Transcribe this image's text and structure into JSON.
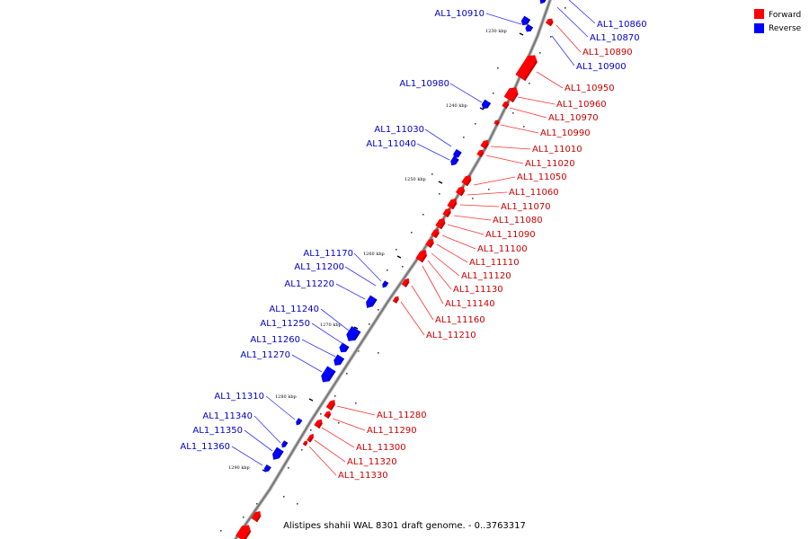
{
  "legend": {
    "items": [
      {
        "label": "Forward",
        "color": "#ff0000"
      },
      {
        "label": "Reverse",
        "color": "#0000ff"
      }
    ]
  },
  "caption": "Alistipes shahii WAL 8301 draft genome. - 0..3763317",
  "colors": {
    "forward": "#ff0000",
    "reverse": "#0000ff",
    "forward_label": "#cc0000",
    "reverse_label": "#0000cc",
    "backbone": "#888888"
  },
  "ticks": [
    "1230 kbp",
    "1240 kbp",
    "1250 kbp",
    "1260 kbp",
    "1270 kbp",
    "1280 kbp",
    "1290 kbp"
  ],
  "reverse_genes": [
    "AL1_10910",
    "AL1_10980",
    "AL1_11030",
    "AL1_11040",
    "AL1_11170",
    "AL1_11200",
    "AL1_11220",
    "AL1_11240",
    "AL1_11250",
    "AL1_11260",
    "AL1_11270",
    "AL1_11310",
    "AL1_11340",
    "AL1_11350",
    "AL1_11360"
  ],
  "right_reverse_genes": [
    "AL1_10860",
    "AL1_10870",
    "AL1_10900"
  ],
  "forward_genes": [
    "AL1_10890",
    "AL1_10950",
    "AL1_10960",
    "AL1_10970",
    "AL1_10990",
    "AL1_11010",
    "AL1_11020",
    "AL1_11050",
    "AL1_11060",
    "AL1_11070",
    "AL1_11080",
    "AL1_11090",
    "AL1_11100",
    "AL1_11110",
    "AL1_11120",
    "AL1_11130",
    "AL1_11140",
    "AL1_11160",
    "AL1_11210",
    "AL1_11280",
    "AL1_11290",
    "AL1_11300",
    "AL1_11320",
    "AL1_11330"
  ]
}
